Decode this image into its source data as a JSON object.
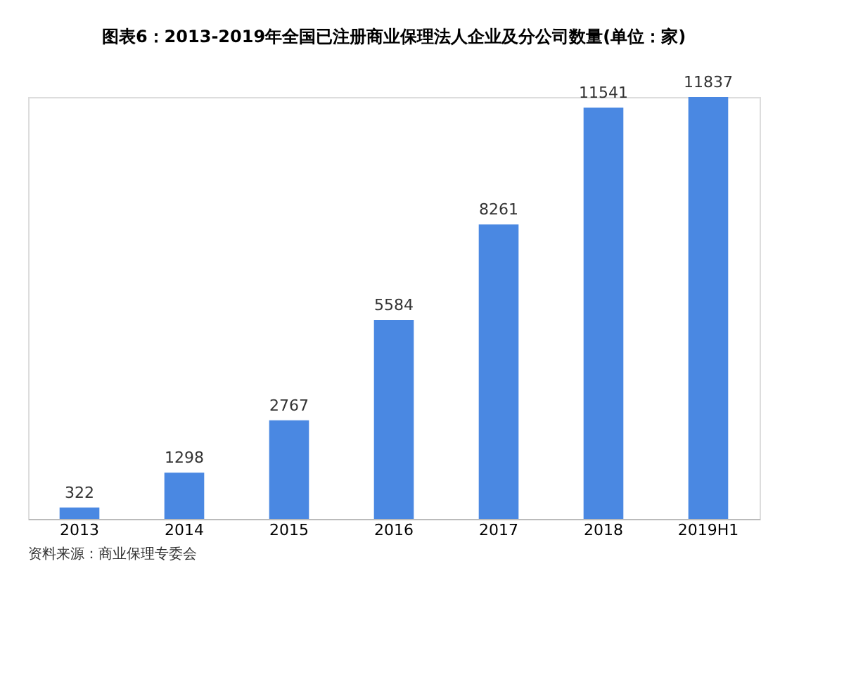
{
  "chart_data": {
    "type": "bar",
    "title": "图表6：2013-2019年全国已注册商业保理法人企业及分公司数量(单位：家)",
    "categories": [
      "2013",
      "2014",
      "2015",
      "2016",
      "2017",
      "2018",
      "2019H1"
    ],
    "values": [
      322,
      1298,
      2767,
      5584,
      8261,
      11541,
      11837
    ],
    "color": "#4a88e2",
    "data_labels": true,
    "annotations": [
      "资料来源：商业保理专委会"
    ]
  }
}
